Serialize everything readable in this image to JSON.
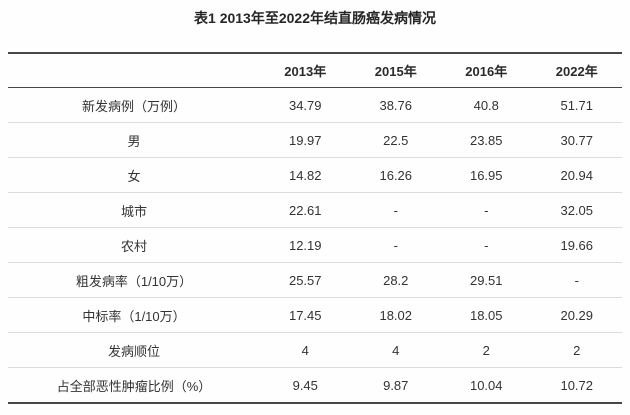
{
  "title": "表1 2013年至2022年结直肠癌发病情况",
  "colors": {
    "background": "#fefefe",
    "text": "#333333",
    "heavy_rule": "#474747",
    "light_rule": "#dcdcdc"
  },
  "table": {
    "columns": [
      "",
      "2013年",
      "2015年",
      "2016年",
      "2022年"
    ],
    "rows": [
      {
        "label": "新发病例（万例）",
        "values": [
          "34.79",
          "38.76",
          "40.8",
          "51.71"
        ]
      },
      {
        "label": "男",
        "values": [
          "19.97",
          "22.5",
          "23.85",
          "30.77"
        ]
      },
      {
        "label": "女",
        "values": [
          "14.82",
          "16.26",
          "16.95",
          "20.94"
        ]
      },
      {
        "label": "城市",
        "values": [
          "22.61",
          "-",
          "-",
          "32.05"
        ]
      },
      {
        "label": "农村",
        "values": [
          "12.19",
          "-",
          "-",
          "19.66"
        ]
      },
      {
        "label": "粗发病率（1/10万）",
        "values": [
          "25.57",
          "28.2",
          "29.51",
          "-"
        ]
      },
      {
        "label": "中标率（1/10万）",
        "values": [
          "17.45",
          "18.02",
          "18.05",
          "20.29"
        ]
      },
      {
        "label": "发病顺位",
        "values": [
          "4",
          "4",
          "2",
          "2"
        ]
      },
      {
        "label": "占全部恶性肿瘤比例（%）",
        "values": [
          "9.45",
          "9.87",
          "10.04",
          "10.72"
        ]
      }
    ]
  }
}
